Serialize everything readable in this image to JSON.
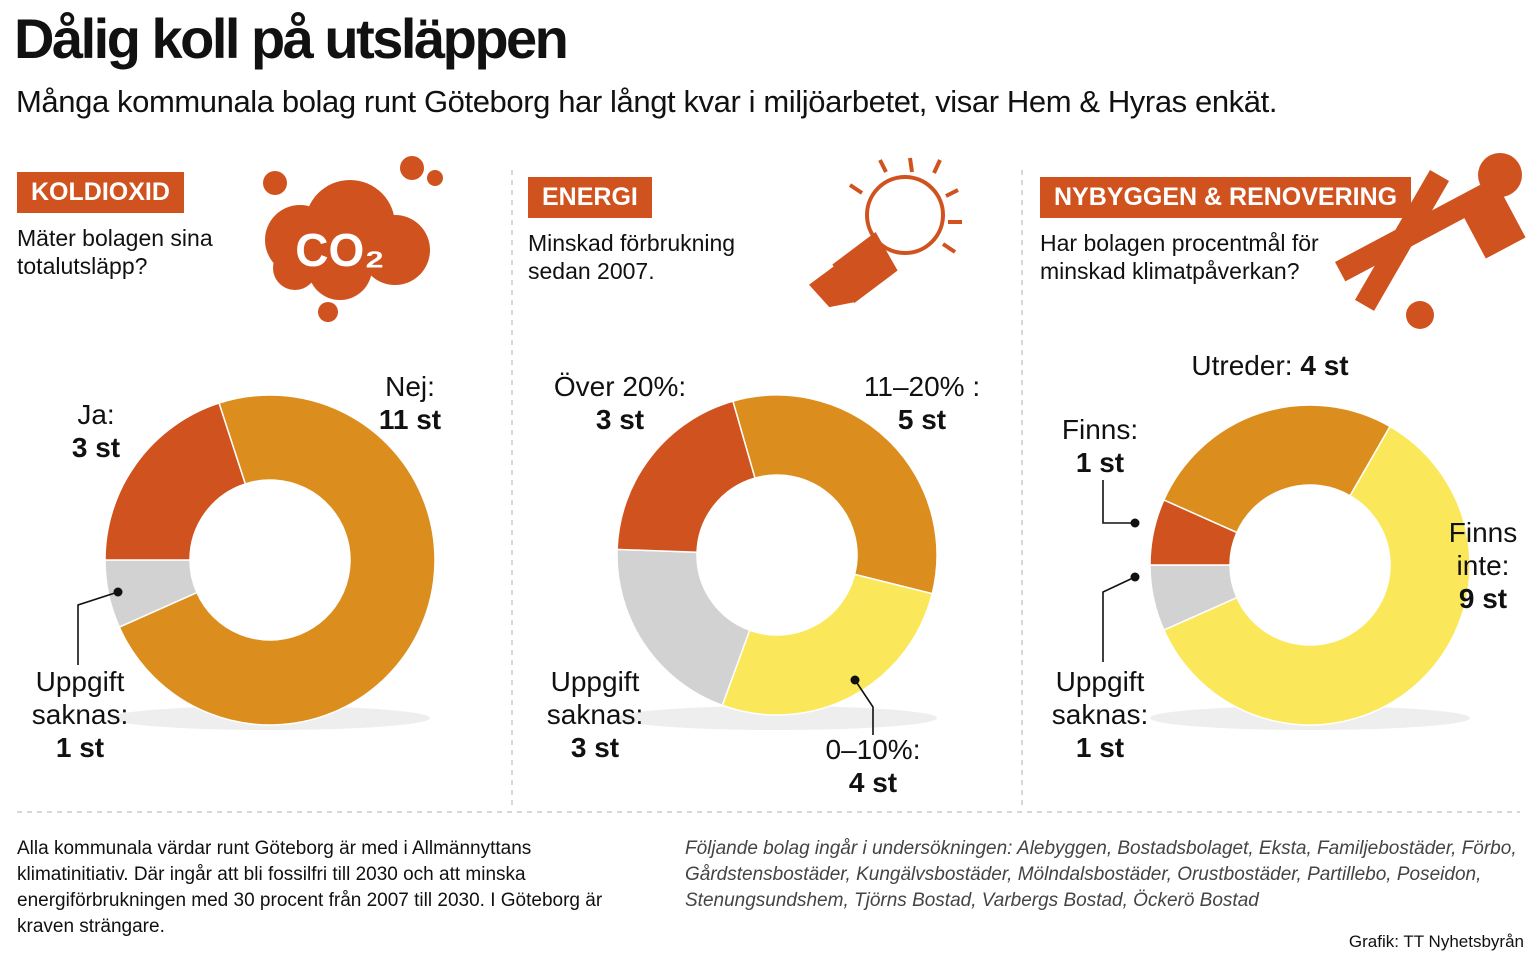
{
  "title": "Dålig koll på utsläppen",
  "subtitle": "Många kommunala bolag runt Göteborg har långt kvar i miljöarbetet, visar Hem & Hyras enkät.",
  "chart_data": [
    {
      "type": "donut",
      "title": "KOLDIOXID",
      "subtitle": "Mäter bolagen sina totalutsläpp?",
      "icon_label": "CO₂",
      "categories": [
        "Nej:",
        "Uppgift saknas:",
        "Ja:"
      ],
      "values": [
        11,
        1,
        3
      ],
      "value_labels": [
        "11 st",
        "1 st",
        "3 st"
      ],
      "colors": [
        "#db8e1e",
        "#d2d2d2",
        "#d0521f"
      ]
    },
    {
      "type": "donut",
      "title": "ENERGI",
      "subtitle": "Minskad förbrukning sedan 2007.",
      "categories": [
        "11–20% :",
        "0–10%:",
        "Uppgift saknas:",
        "Över 20%:"
      ],
      "values": [
        5,
        4,
        3,
        3
      ],
      "value_labels": [
        "5 st",
        "4 st",
        "3 st",
        "3 st"
      ],
      "colors": [
        "#db8e1e",
        "#fbe85a",
        "#d2d2d2",
        "#d0521f"
      ]
    },
    {
      "type": "donut",
      "title": "NYBYGGEN & RENOVERING",
      "subtitle": "Har bolagen procentmål för minskad klimatpåverkan?",
      "categories": [
        "Finns inte:",
        "Uppgift saknas:",
        "Finns:",
        "Utreder:"
      ],
      "values": [
        9,
        1,
        1,
        4
      ],
      "value_labels": [
        "9 st",
        "1 st",
        "1 st",
        "4 st"
      ],
      "colors": [
        "#fbe85a",
        "#d2d2d2",
        "#d0521f",
        "#db8e1e"
      ]
    }
  ],
  "footer": {
    "note": "Alla kommunala värdar runt Göteborg är med i Allmännyttans klimatinitiativ. Där ingår att bli fossilfri till 2030 och att minska energiförbrukningen med 30 procent från 2007 till 2030. I Göteborg är kraven strängare.",
    "companies": "Följande bolag ingår i undersökningen: Alebyggen, Bostadsbolaget, Eksta, Familjebostäder, Förbo, Gårdstensbostäder, Kungälvsbostäder, Mölndalsbostäder, Orustbostäder, Partillebo, Poseidon, Stenungsundshem, Tjörns Bostad, Varbergs Bostad, Öckerö Bostad",
    "credit": "Grafik: TT Nyhetsbyrån"
  }
}
